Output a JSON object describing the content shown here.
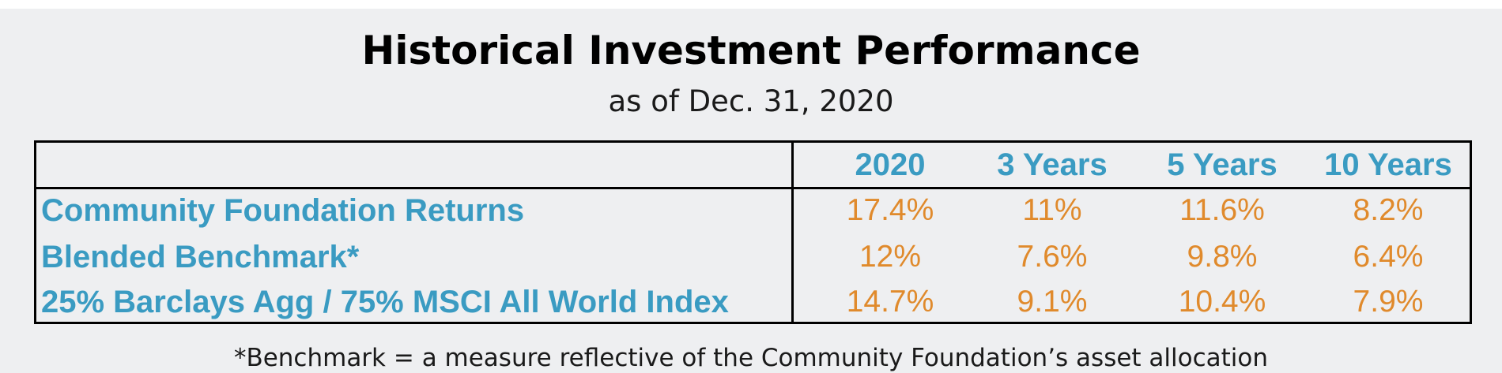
{
  "title": "Historical Investment Performance",
  "subtitle": "as of Dec. 31, 2020",
  "footnote": "*Benchmark = a measure reflective of the Community Foundation’s asset allocation",
  "colors": {
    "label_blue": "#3a9bc2",
    "value_orange": "#e08a2c",
    "panel_bg": "#eeeff1"
  },
  "chart_data": {
    "type": "table",
    "columns": [
      "2020",
      "3 Years",
      "5 Years",
      "10 Years"
    ],
    "rows": [
      {
        "label": "Community Foundation Returns",
        "values": [
          "17.4%",
          "11%",
          "11.6%",
          "8.2%"
        ]
      },
      {
        "label": "Blended Benchmark*",
        "values": [
          "12%",
          "7.6%",
          "9.8%",
          "6.4%"
        ]
      },
      {
        "label": "25% Barclays Agg / 75% MSCI All World Index",
        "values": [
          "14.7%",
          "9.1%",
          "10.4%",
          "7.9%"
        ]
      }
    ]
  }
}
